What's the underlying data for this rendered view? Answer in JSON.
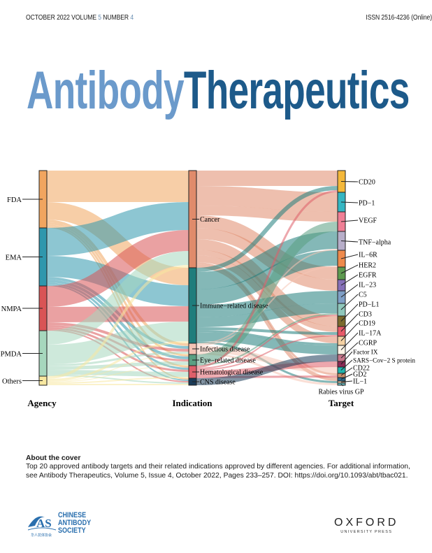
{
  "header": {
    "date_volume": "OCTOBER 2022 VOLUME",
    "volume": "5",
    "number_label": "NUMBER",
    "number": "4",
    "issn": "ISSN 2516-4236 (Online)"
  },
  "title": {
    "part1": "Antibody",
    "part2": "Therapeutics"
  },
  "diagram": {
    "axis_labels": {
      "agency": "Agency",
      "indication": "Indication",
      "target": "Target"
    },
    "agencies": [
      {
        "name": "FDA",
        "color": "#f1a55f"
      },
      {
        "name": "EMA",
        "color": "#2f97ad"
      },
      {
        "name": "NMPA",
        "color": "#d95455"
      },
      {
        "name": "PMDA",
        "color": "#a6d7bd"
      },
      {
        "name": "Others",
        "color": "#f8e8a0"
      }
    ],
    "indications": [
      {
        "name": "Cancer",
        "color": "#e08b6b"
      },
      {
        "name": "Immune−related disease",
        "color": "#1f7d7c"
      },
      {
        "name": "Infectious disease",
        "color": "#f5c4b5"
      },
      {
        "name": "Eye−related disease",
        "color": "#5a9f82"
      },
      {
        "name": "Hematological disease",
        "color": "#de5f6a"
      },
      {
        "name": "CNS disease",
        "color": "#1a3b58"
      }
    ],
    "targets": [
      {
        "name": "CD20",
        "color": "#f4b83a"
      },
      {
        "name": "PD−1",
        "color": "#35b6c2"
      },
      {
        "name": "VEGF",
        "color": "#ef7f95"
      },
      {
        "name": "TNF−alpha",
        "color": "#b7aec9"
      },
      {
        "name": "IL−6R",
        "color": "#ee8a4c"
      },
      {
        "name": "HER2",
        "color": "#5d9a4f"
      },
      {
        "name": "EGFR",
        "color": "#8670b8"
      },
      {
        "name": "IL−23",
        "color": "#7f9fc6"
      },
      {
        "name": "C5",
        "color": "#8fc7bb"
      },
      {
        "name": "PD−L1",
        "color": "#7b6a2c"
      },
      {
        "name": "CD3",
        "color": "#e75a68"
      },
      {
        "name": "CD19",
        "color": "#f3d0a2"
      },
      {
        "name": "IL−17A",
        "color": "#fbf3e6"
      },
      {
        "name": "CGRP",
        "color": "#c7758a"
      },
      {
        "name": "Factor IX",
        "color": "#8b2a55"
      },
      {
        "name": "SARS−Cov−2 S protein",
        "color": "#1fb4ad"
      },
      {
        "name": "CD22",
        "color": "#c98e6a"
      },
      {
        "name": "GD2",
        "color": "#2b6a8e"
      },
      {
        "name": "IL−1",
        "color": "#e0c7a8"
      },
      {
        "name": "Rabies virus GP",
        "color": "#6cc4c9"
      }
    ],
    "agency_links": [
      [
        0,
        0,
        45
      ],
      [
        0,
        1,
        25
      ],
      [
        0,
        2,
        4
      ],
      [
        0,
        3,
        3
      ],
      [
        0,
        4,
        3
      ],
      [
        0,
        5,
        2
      ],
      [
        1,
        0,
        40
      ],
      [
        1,
        1,
        30
      ],
      [
        1,
        2,
        4
      ],
      [
        1,
        3,
        4
      ],
      [
        1,
        4,
        3
      ],
      [
        1,
        5,
        2
      ],
      [
        2,
        0,
        30
      ],
      [
        2,
        1,
        22
      ],
      [
        2,
        2,
        4
      ],
      [
        2,
        3,
        3
      ],
      [
        2,
        4,
        3
      ],
      [
        2,
        5,
        2
      ],
      [
        3,
        0,
        20
      ],
      [
        3,
        1,
        28
      ],
      [
        3,
        2,
        3
      ],
      [
        3,
        3,
        5
      ],
      [
        3,
        4,
        7
      ],
      [
        3,
        5,
        2
      ],
      [
        4,
        0,
        4
      ],
      [
        4,
        1,
        3
      ],
      [
        4,
        2,
        1
      ],
      [
        4,
        3,
        1
      ],
      [
        4,
        4,
        2
      ],
      [
        4,
        5,
        2
      ]
    ],
    "target_links": [
      [
        0,
        0,
        22
      ],
      [
        0,
        1,
        28
      ],
      [
        0,
        2,
        14
      ],
      [
        0,
        5,
        18
      ],
      [
        0,
        6,
        16
      ],
      [
        0,
        9,
        15
      ],
      [
        0,
        10,
        8
      ],
      [
        0,
        11,
        10
      ],
      [
        0,
        16,
        3
      ],
      [
        0,
        17,
        5
      ],
      [
        1,
        0,
        6
      ],
      [
        1,
        3,
        25
      ],
      [
        1,
        4,
        22
      ],
      [
        1,
        7,
        18
      ],
      [
        1,
        8,
        14
      ],
      [
        1,
        10,
        4
      ],
      [
        1,
        11,
        3
      ],
      [
        1,
        12,
        13
      ],
      [
        1,
        18,
        3
      ],
      [
        2,
        15,
        9
      ],
      [
        2,
        19,
        3
      ],
      [
        2,
        4,
        2
      ],
      [
        2,
        3,
        2
      ],
      [
        3,
        2,
        14
      ],
      [
        3,
        8,
        2
      ],
      [
        4,
        14,
        8
      ],
      [
        4,
        0,
        3
      ],
      [
        4,
        8,
        2
      ],
      [
        4,
        10,
        2
      ],
      [
        4,
        16,
        3
      ],
      [
        5,
        13,
        10
      ]
    ]
  },
  "about": {
    "heading": "About the cover",
    "text": "Top 20 approved antibody targets and their related indications approved by different agencies. For additional information, see Antibody Therapeutics, Volume 5, Issue 4, October 2022, Pages 233–257. DOI: https://doi.org/10.1093/abt/tbac021."
  },
  "logos": {
    "cas_line1": "CHINESE",
    "cas_line2": "ANTIBODY",
    "cas_line3": "SOCIETY",
    "cas_chinese": "华人抗体协会",
    "oup_line1": "OXFORD",
    "oup_line2": "UNIVERSITY PRESS"
  }
}
